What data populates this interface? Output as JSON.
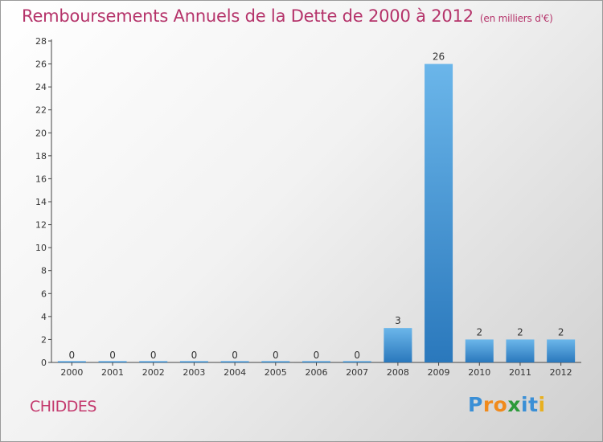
{
  "title": "Remboursements Annuels de la Dette de 2000 à 2012",
  "unit": "(en milliers d'€)",
  "commune": "CHIDDES",
  "logo": {
    "letters": [
      "P",
      "r",
      "o",
      "x",
      "i",
      "t",
      "i"
    ],
    "colors": [
      "#3a8fd6",
      "#f08a1c",
      "#f08a1c",
      "#2b9a3a",
      "#3a8fd6",
      "#3a8fd6",
      "#e8b020"
    ]
  },
  "colors": {
    "bar": "#3d93d6",
    "bar_light": "#6bb6ea",
    "bar_dark": "#2a78bc",
    "title": "#b5336a",
    "axis": "#444444"
  },
  "chart_data": {
    "type": "bar",
    "categories": [
      "2000",
      "2001",
      "2002",
      "2003",
      "2004",
      "2005",
      "2006",
      "2007",
      "2008",
      "2009",
      "2010",
      "2011",
      "2012"
    ],
    "values": [
      0,
      0,
      0,
      0,
      0,
      0,
      0,
      0,
      3,
      26,
      2,
      2,
      2
    ],
    "ylim": [
      0,
      28
    ],
    "yticks": [
      0,
      2,
      4,
      6,
      8,
      10,
      12,
      14,
      16,
      18,
      20,
      22,
      24,
      26,
      28
    ],
    "grid": false,
    "legend": "none"
  }
}
